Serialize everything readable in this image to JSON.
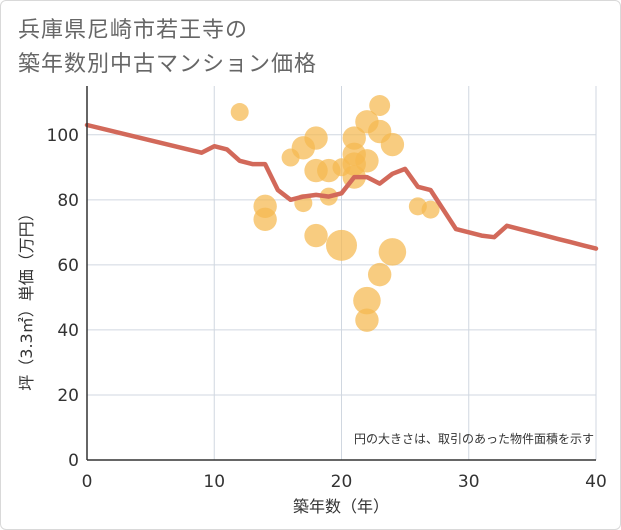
{
  "title_line1": "兵庫県尼崎市若王寺の",
  "title_line2": "築年数別中古マンション価格",
  "chart_data": {
    "type": "scatter",
    "xlabel": "築年数（年）",
    "ylabel": "坪（3.3㎡）単価（万円）",
    "xlim": [
      0,
      40
    ],
    "ylim": [
      0,
      115
    ],
    "xticks": [
      0,
      10,
      20,
      30,
      40
    ],
    "yticks": [
      0,
      20,
      40,
      60,
      80,
      100
    ],
    "grid": true,
    "note": "円の大きさは、取引のあった物件面積を示す",
    "colors": {
      "bubble": "#f5b94f",
      "line": "#d2695a",
      "grid": "#d0d7e0"
    },
    "bubbles": [
      {
        "x": 12,
        "y": 107,
        "size": 1
      },
      {
        "x": 14,
        "y": 78,
        "size": 2
      },
      {
        "x": 14,
        "y": 74,
        "size": 2
      },
      {
        "x": 16,
        "y": 93,
        "size": 1
      },
      {
        "x": 17,
        "y": 96,
        "size": 2
      },
      {
        "x": 17,
        "y": 79,
        "size": 1
      },
      {
        "x": 18,
        "y": 99,
        "size": 2
      },
      {
        "x": 18,
        "y": 89,
        "size": 2
      },
      {
        "x": 18,
        "y": 69,
        "size": 2
      },
      {
        "x": 19,
        "y": 89,
        "size": 2
      },
      {
        "x": 19,
        "y": 81,
        "size": 1
      },
      {
        "x": 20,
        "y": 90,
        "size": 1
      },
      {
        "x": 20,
        "y": 66,
        "size": 4
      },
      {
        "x": 21,
        "y": 99,
        "size": 2
      },
      {
        "x": 21,
        "y": 94,
        "size": 2
      },
      {
        "x": 21,
        "y": 91,
        "size": 2
      },
      {
        "x": 21,
        "y": 87,
        "size": 2
      },
      {
        "x": 22,
        "y": 104,
        "size": 2
      },
      {
        "x": 22,
        "y": 92,
        "size": 2
      },
      {
        "x": 22,
        "y": 49,
        "size": 3
      },
      {
        "x": 22,
        "y": 43,
        "size": 2
      },
      {
        "x": 23,
        "y": 109,
        "size": 1.5
      },
      {
        "x": 23,
        "y": 101,
        "size": 2
      },
      {
        "x": 23,
        "y": 57,
        "size": 2
      },
      {
        "x": 24,
        "y": 97,
        "size": 2
      },
      {
        "x": 24,
        "y": 64,
        "size": 3
      },
      {
        "x": 26,
        "y": 78,
        "size": 1
      },
      {
        "x": 27,
        "y": 77,
        "size": 1
      }
    ],
    "trend": {
      "x": [
        0,
        9,
        10,
        11,
        12,
        13,
        14,
        15,
        16,
        17,
        18,
        19,
        20,
        21,
        22,
        23,
        24,
        25,
        26,
        27,
        28,
        29,
        30,
        31,
        32,
        33,
        34,
        35,
        36,
        37,
        38,
        39,
        40
      ],
      "y": [
        103,
        94.5,
        96.5,
        95.5,
        92,
        91,
        91,
        83,
        80,
        81,
        81.5,
        81,
        82,
        87,
        87,
        85,
        88,
        89.5,
        84,
        83,
        77,
        71,
        70,
        69,
        68.5,
        72,
        71,
        70,
        69,
        68,
        67,
        66,
        65
      ]
    }
  }
}
